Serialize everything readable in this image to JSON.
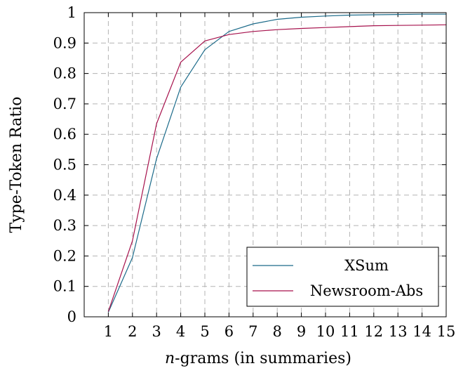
{
  "chart_data": {
    "type": "line",
    "xlabel_italic_part": "n",
    "xlabel_rest": "-grams (in summaries)",
    "ylabel": "Type-Token Ratio",
    "x": [
      1,
      2,
      3,
      4,
      5,
      6,
      7,
      8,
      9,
      10,
      11,
      12,
      13,
      14,
      15
    ],
    "xlim": [
      0,
      15
    ],
    "ylim": [
      0,
      1
    ],
    "xticks": [
      "1",
      "2",
      "3",
      "4",
      "5",
      "6",
      "7",
      "8",
      "9",
      "10",
      "11",
      "12",
      "13",
      "14",
      "15"
    ],
    "yticks": [
      "0",
      "0.1",
      "0.2",
      "0.3",
      "0.4",
      "0.5",
      "0.6",
      "0.7",
      "0.8",
      "0.9",
      "1"
    ],
    "grid": true,
    "legend_position": "bottom-right",
    "series": [
      {
        "name": "XSum",
        "color": "#1c6b8a",
        "values": [
          0.015,
          0.195,
          0.52,
          0.755,
          0.878,
          0.938,
          0.963,
          0.978,
          0.985,
          0.989,
          0.992,
          0.993,
          0.994,
          0.995,
          0.995
        ]
      },
      {
        "name": "Newsroom-Abs",
        "color": "#a6114c",
        "values": [
          0.017,
          0.25,
          0.635,
          0.837,
          0.907,
          0.928,
          0.938,
          0.944,
          0.948,
          0.951,
          0.954,
          0.957,
          0.958,
          0.959,
          0.96
        ]
      }
    ]
  }
}
